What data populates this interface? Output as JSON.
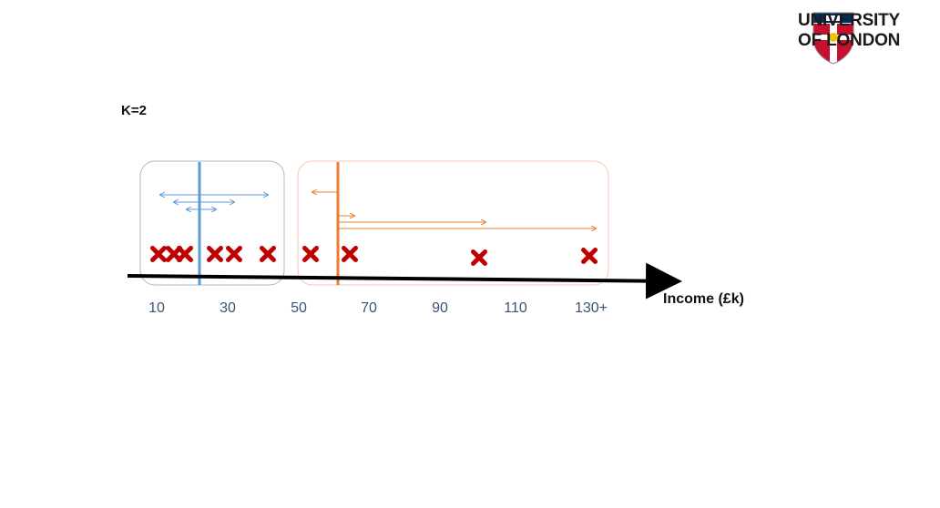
{
  "header": {
    "logo_line1": "UNIVERSITY",
    "logo_line2": "OF LONDON",
    "logo_icon": "university-crest"
  },
  "slide": {
    "k_label": "K=2"
  },
  "axis": {
    "label": "Income (£k)",
    "ticks": [
      "10",
      "30",
      "50",
      "70",
      "90",
      "110",
      "130+"
    ]
  },
  "colors": {
    "cluster1": "#5b9bd5",
    "cluster2": "#ed7d31",
    "cross": "#c00000",
    "crest_red": "#c8102e",
    "crest_blue": "#002d62"
  }
}
